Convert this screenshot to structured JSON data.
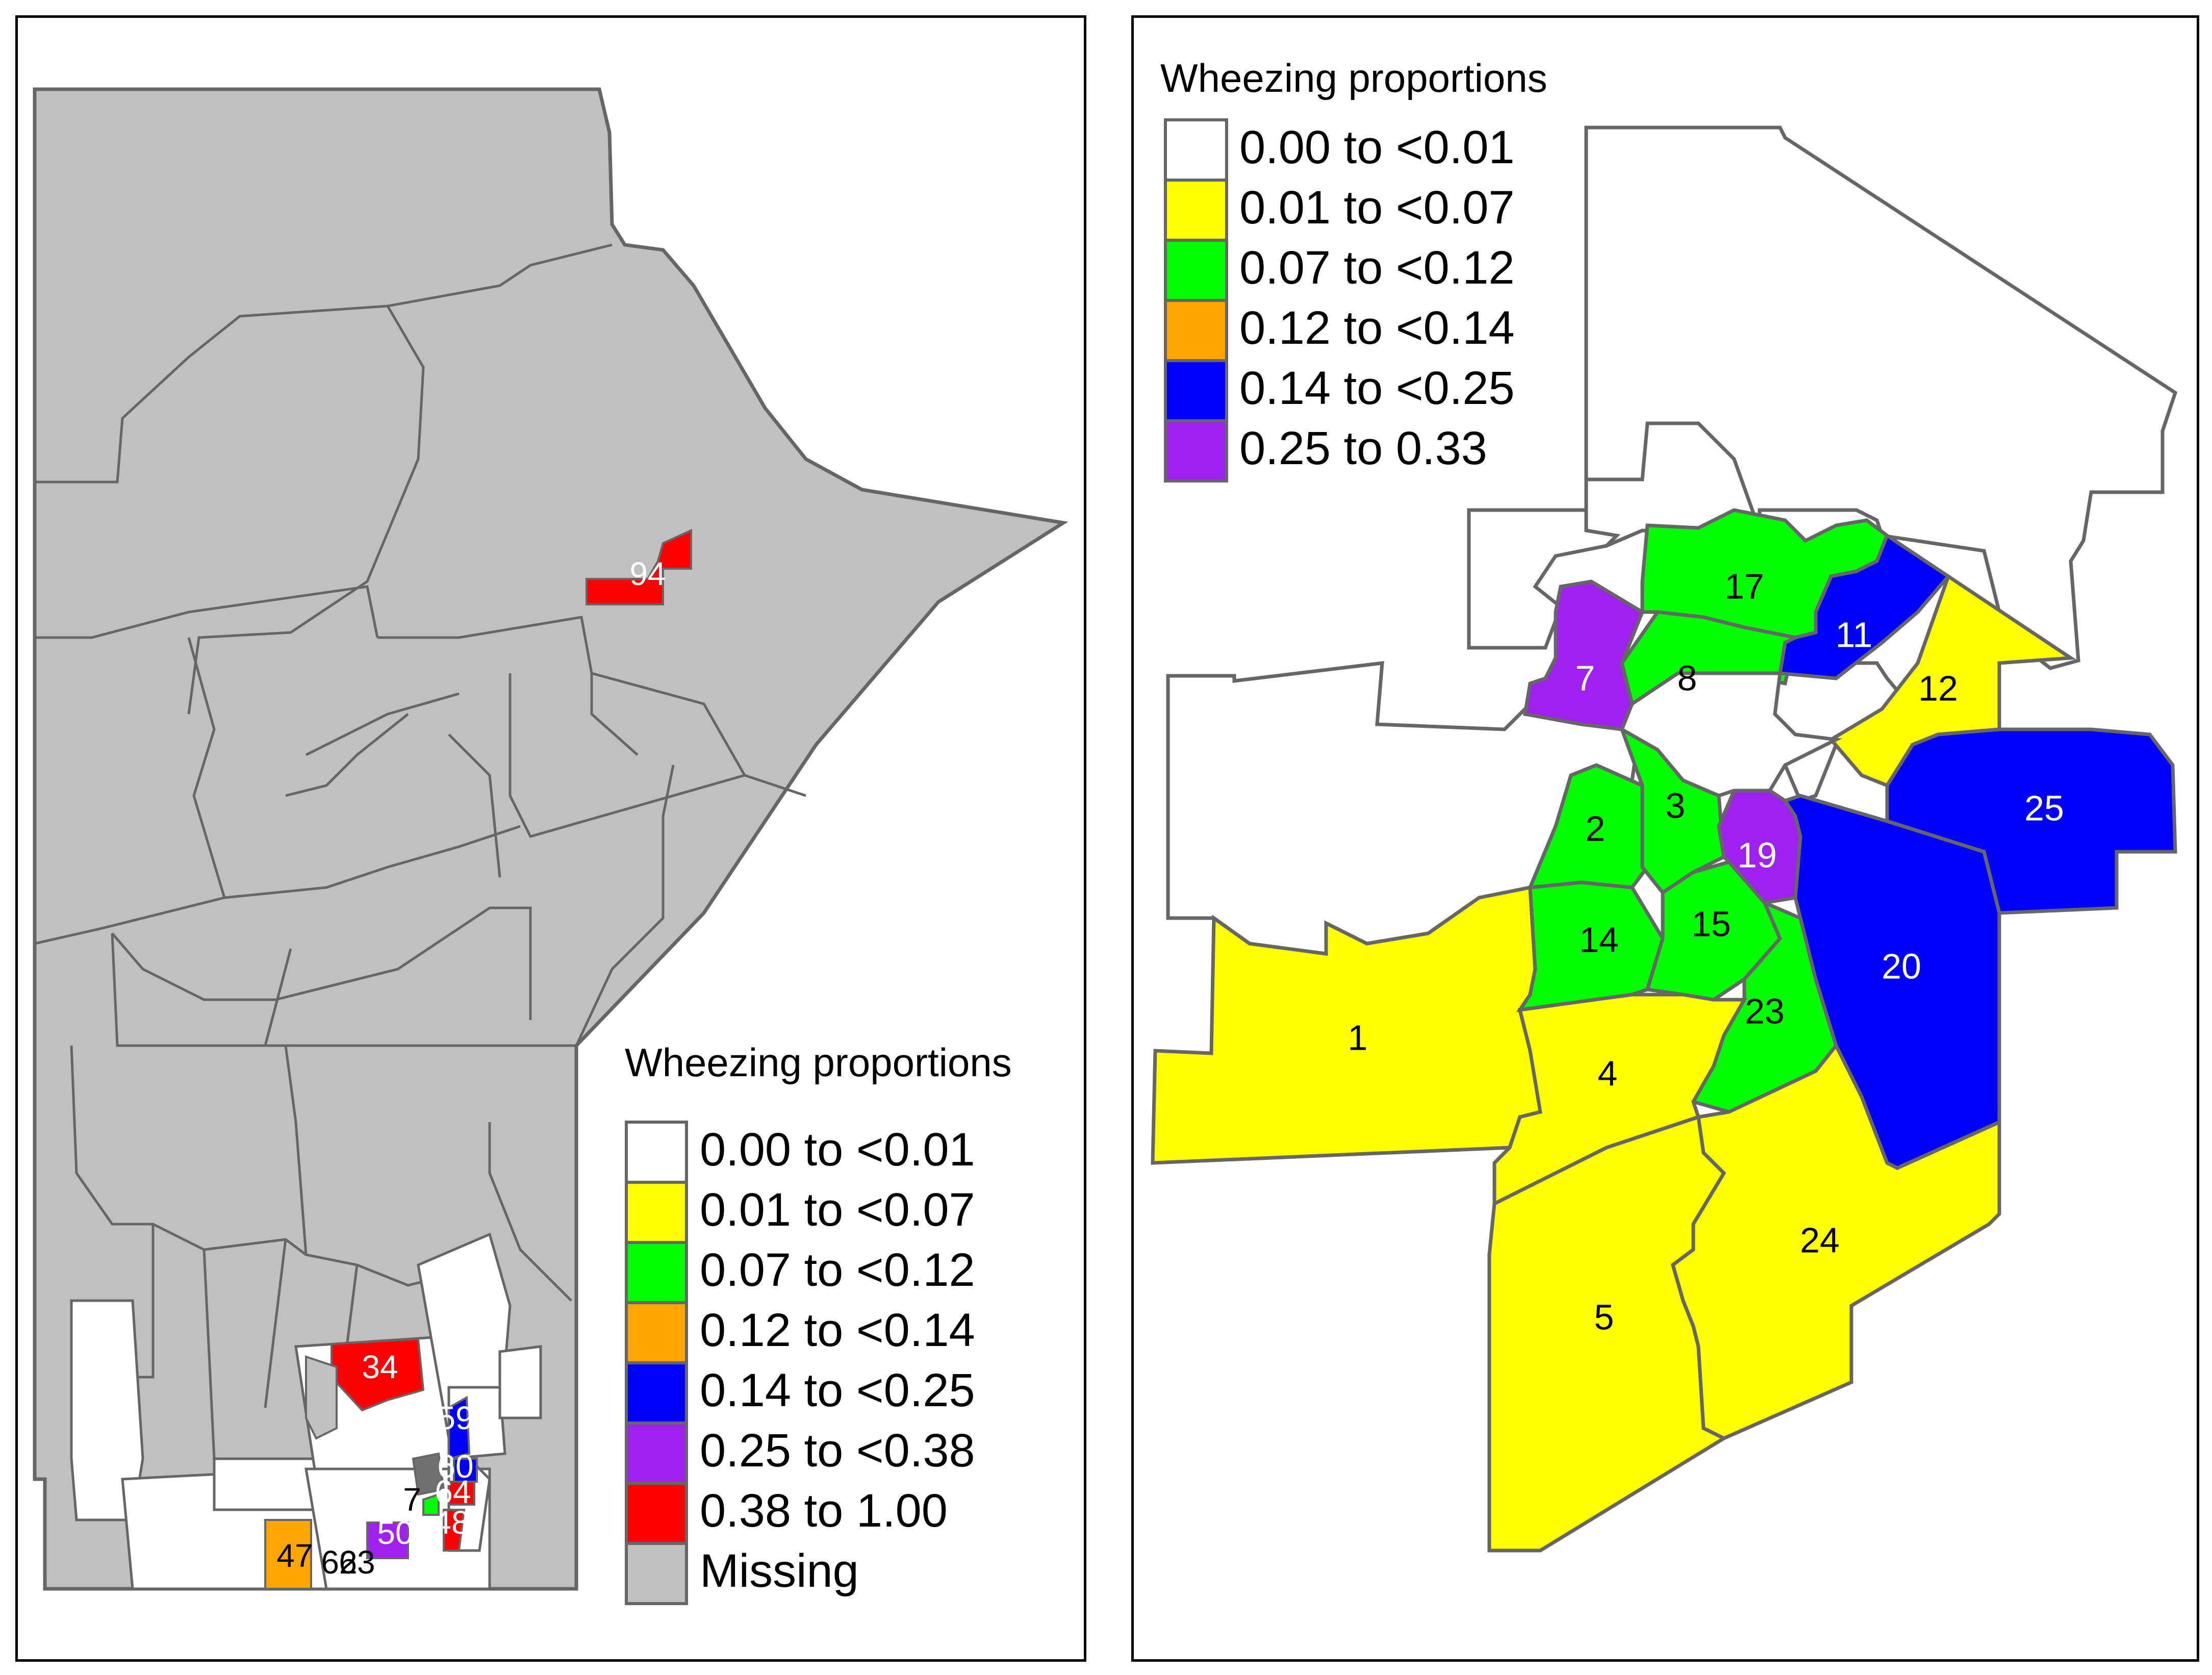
{
  "colors": {
    "white": "#ffffff",
    "yellow": "#ffff00",
    "green": "#00ff00",
    "orange": "#ffa500",
    "blue": "#0000ff",
    "purple": "#a020f0",
    "red": "#ff0000",
    "missing": "#c0c0c0",
    "border": "#666666"
  },
  "left_map": {
    "legend": {
      "title": "Wheezing proportions",
      "items": [
        {
          "label": "0.00 to <0.01",
          "color": "#ffffff"
        },
        {
          "label": "0.01 to <0.07",
          "color": "#ffff00"
        },
        {
          "label": "0.07 to <0.12",
          "color": "#00ff00"
        },
        {
          "label": "0.12 to <0.14",
          "color": "#ffa500"
        },
        {
          "label": "0.14 to <0.25",
          "color": "#0000ff"
        },
        {
          "label": "0.25 to <0.38",
          "color": "#a020f0"
        },
        {
          "label": "0.38 to 1.00",
          "color": "#ff0000"
        },
        {
          "label": "Missing",
          "color": "#c0c0c0"
        }
      ]
    },
    "region_labels": [
      "94",
      "34",
      "59",
      "60",
      "64",
      "7",
      "48",
      "50",
      "47",
      "62",
      "63"
    ]
  },
  "right_map": {
    "legend": {
      "title": "Wheezing proportions",
      "items": [
        {
          "label": "0.00 to <0.01",
          "color": "#ffffff"
        },
        {
          "label": "0.01 to <0.07",
          "color": "#ffff00"
        },
        {
          "label": "0.07 to <0.12",
          "color": "#00ff00"
        },
        {
          "label": "0.12 to <0.14",
          "color": "#ffa500"
        },
        {
          "label": "0.14 to <0.25",
          "color": "#0000ff"
        },
        {
          "label": "0.25 to 0.33",
          "color": "#a020f0"
        }
      ]
    },
    "region_labels": [
      "17",
      "11",
      "7",
      "8",
      "12",
      "3",
      "2",
      "25",
      "19",
      "15",
      "14",
      "20",
      "23",
      "1",
      "4",
      "24",
      "5"
    ]
  }
}
